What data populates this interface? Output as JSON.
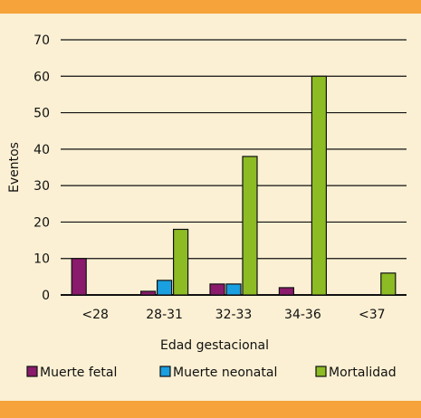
{
  "chart_data": {
    "type": "bar",
    "categories": [
      "<28",
      "28-31",
      "32-33",
      "34-36",
      "<37"
    ],
    "series": [
      {
        "name": "Muerte fetal",
        "color": "#8a1a6b",
        "values": [
          10,
          1,
          3,
          2,
          0
        ]
      },
      {
        "name": "Muerte neonatal",
        "color": "#1a9fe0",
        "values": [
          0,
          4,
          3,
          0,
          0
        ]
      },
      {
        "name": "Mortalidad",
        "color": "#8dbb24",
        "values": [
          0,
          18,
          38,
          60,
          6
        ]
      }
    ],
    "xlabel": "Edad gestacional",
    "ylabel": "Eventos",
    "ylim": [
      0,
      70
    ],
    "yticks": [
      0,
      10,
      20,
      30,
      40,
      50,
      60,
      70
    ],
    "grid": "horizontal",
    "legend": "bottom"
  }
}
